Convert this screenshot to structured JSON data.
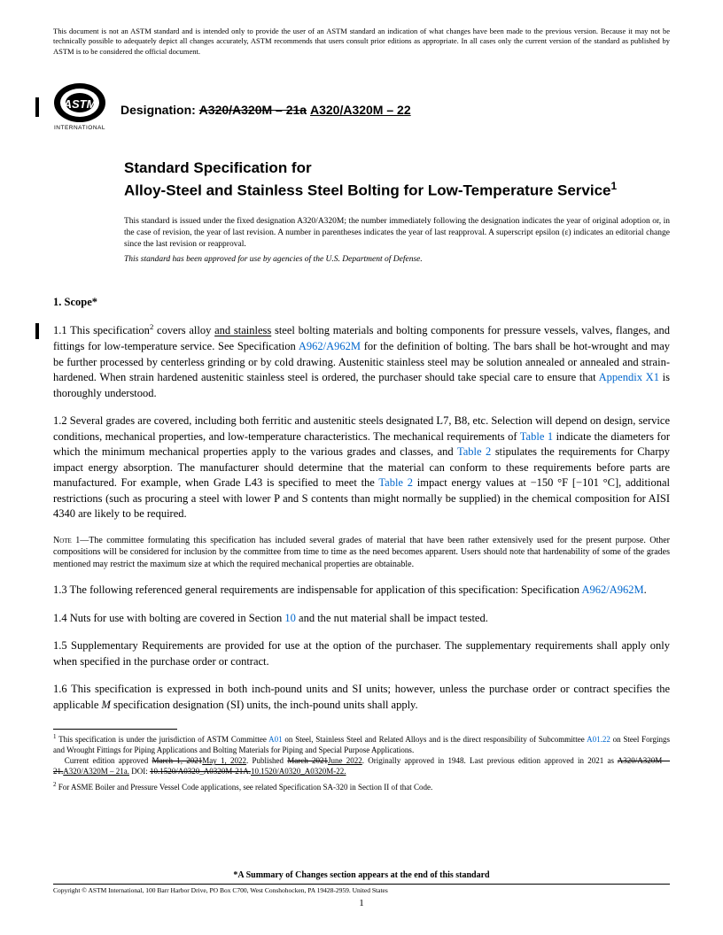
{
  "disclaimer": "This document is not an ASTM standard and is intended only to provide the user of an ASTM standard an indication of what changes have been made to the previous version. Because it may not be technically possible to adequately depict all changes accurately, ASTM recommends that users consult prior editions as appropriate. In all cases only the current version of the standard as published by ASTM is to be considered the official document.",
  "logo_text_top": "ASTM",
  "logo_text_bottom": "INTERNATIONAL",
  "designation_label": "Designation:",
  "designation_old": "A320/A320M – 21a",
  "designation_new": "A320/A320M – 22",
  "title_line1": "Standard Specification for",
  "title_line2": "Alloy-Steel and Stainless Steel Bolting for Low-Temperature Service",
  "title_sup": "1",
  "issuance": "This standard is issued under the fixed designation A320/A320M; the number immediately following the designation indicates the year of original adoption or, in the case of revision, the year of last revision. A number in parentheses indicates the year of last reapproval. A superscript epsilon (ε) indicates an editorial change since the last revision or reapproval.",
  "approved": "This standard has been approved for use by agencies of the U.S. Department of Defense.",
  "scope_head": "1.  Scope*",
  "p11a": "1.1 This specification",
  "p11sup": "2",
  "p11b": " covers alloy ",
  "p11u": "and stainless",
  "p11c": " steel bolting materials and bolting components for pressure vessels, valves, flanges, and fittings for low-temperature service. See Specification ",
  "p11link1": "A962/A962M",
  "p11d": " for the definition of bolting. The bars shall be hot-wrought and may be further processed by centerless grinding or by cold drawing. Austenitic stainless steel may be solution annealed or annealed and strain-hardened. When strain hardened austenitic stainless steel is ordered, the purchaser should take special care to ensure that ",
  "p11link2": "Appendix X1",
  "p11e": " is thoroughly understood.",
  "p12a": "1.2 Several grades are covered, including both ferritic and austenitic steels designated L7, B8, etc. Selection will depend on design, service conditions, mechanical properties, and low-temperature characteristics. The mechanical requirements of ",
  "p12link1": "Table 1",
  "p12b": " indicate the diameters for which the minimum mechanical properties apply to the various grades and classes, and ",
  "p12link2": "Table 2",
  "p12c": " stipulates the requirements for Charpy impact energy absorption. The manufacturer should determine that the material can conform to these requirements before parts are manufactured. For example, when Grade L43 is specified to meet the ",
  "p12link3": "Table 2",
  "p12d": " impact energy values at −150 °F [−101 °C], additional restrictions (such as procuring a steel with lower P and S contents than might normally be supplied) in the chemical composition for AISI 4340 are likely to be required.",
  "note1": "Note 1—The committee formulating this specification has included several grades of material that have been rather extensively used for the present purpose. Other compositions will be considered for inclusion by the committee from time to time as the need becomes apparent. Users should note that hardenability of some of the grades mentioned may restrict the maximum size at which the required mechanical properties are obtainable.",
  "p13a": "1.3 The following referenced general requirements are indispensable for application of this specification: Specification ",
  "p13link": "A962/A962M",
  "p13b": ".",
  "p14a": "1.4  Nuts for use with bolting are covered in Section ",
  "p14link": "10",
  "p14b": " and the nut material shall be impact tested.",
  "p15": "1.5  Supplementary Requirements are provided for use at the option of the purchaser. The supplementary requirements shall apply only when specified in the purchase order or contract.",
  "p16a": "1.6  This specification is expressed in both inch-pound units and SI units; however, unless the purchase order or contract specifies the applicable ",
  "p16i": "M",
  "p16b": " specification designation (SI) units, the inch-pound units shall apply.",
  "fn1a": " This specification is under the jurisdiction of ASTM Committee ",
  "fn1link1": "A01",
  "fn1b": " on Steel, Stainless Steel and Related Alloys and is the direct responsibility of Subcommittee ",
  "fn1link2": "A01.22",
  "fn1c": " on Steel Forgings and Wrought Fittings for Piping Applications and Bolting Materials for Piping and Special Purpose Applications.",
  "fn1d": "Current edition approved ",
  "fn1s1": "March 1, 2021",
  "fn1u1": "May 1, 2022",
  "fn1e": ". Published ",
  "fn1s2": "March 2021",
  "fn1u2": "June 2022",
  "fn1f": ". Originally approved in 1948. Last previous edition approved in 2021 as ",
  "fn1s3": "A320/A320M – 21.",
  "fn1u3": "A320/A320M – 21a.",
  "fn1g": " DOI: ",
  "fn1s4": "10.1520/A0320_A0320M-21A.",
  "fn1u4": "10.1520/A0320_A0320M-22.",
  "fn2": " For ASME Boiler and Pressure Vessel Code applications, see related Specification SA-320 in Section II of that Code.",
  "summary": "*A Summary of Changes section appears at the end of this standard",
  "copyright": "Copyright © ASTM International, 100 Barr Harbor Drive, PO Box C700, West Conshohocken, PA 19428-2959. United States",
  "pagenum": "1"
}
